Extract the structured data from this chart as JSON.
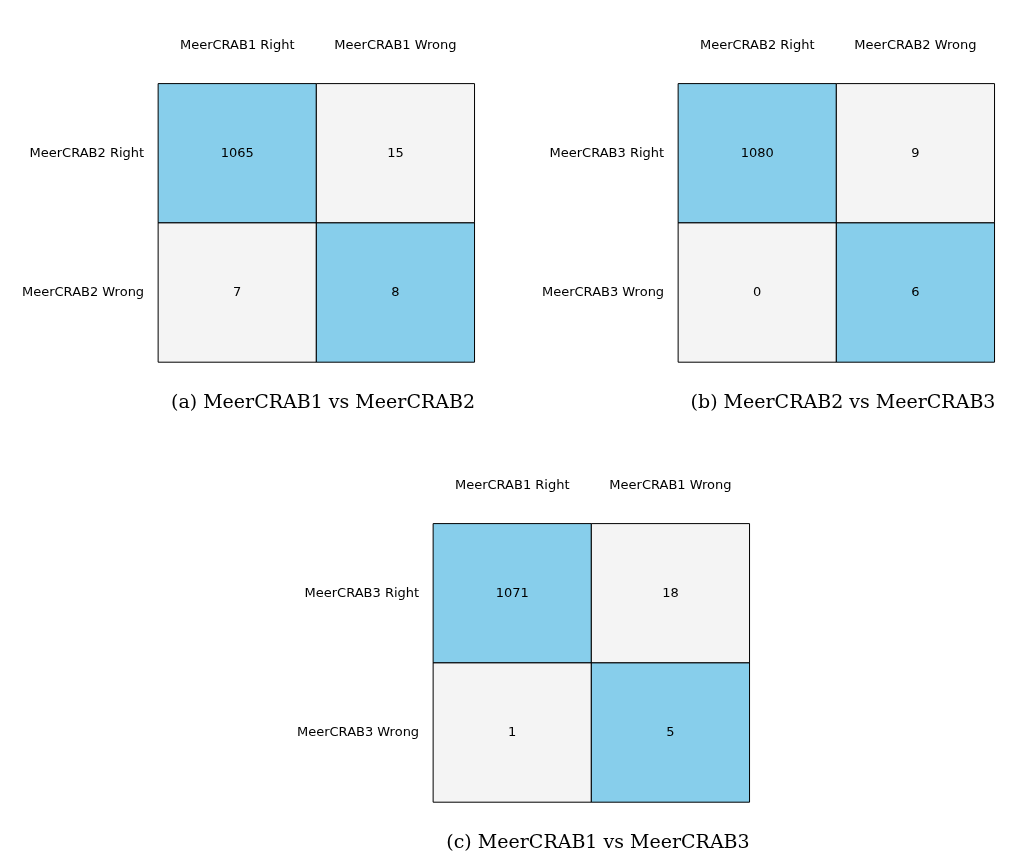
{
  "chart_data": [
    {
      "type": "heatmap",
      "title": "(a) MeerCRAB1 vs MeerCRAB2",
      "categories": [
        "MeerCRAB1 Right",
        "MeerCRAB1 Wrong"
      ],
      "y_categories": [
        "MeerCRAB2 Right",
        "MeerCRAB2 Wrong"
      ],
      "cells": [
        [
          1065,
          15
        ],
        [
          7,
          8
        ]
      ],
      "data_labels": true,
      "colors": [
        [
          "#87ceeb",
          "#f4f4f4"
        ],
        [
          "#f4f4f4",
          "#87ceeb"
        ]
      ]
    },
    {
      "type": "heatmap",
      "title": "(b) MeerCRAB2 vs MeerCRAB3",
      "categories": [
        "MeerCRAB2 Right",
        "MeerCRAB2 Wrong"
      ],
      "y_categories": [
        "MeerCRAB3 Right",
        "MeerCRAB3 Wrong"
      ],
      "cells": [
        [
          1080,
          9
        ],
        [
          0,
          6
        ]
      ],
      "data_labels": true,
      "colors": [
        [
          "#87ceeb",
          "#f4f4f4"
        ],
        [
          "#f4f4f4",
          "#87ceeb"
        ]
      ]
    },
    {
      "type": "heatmap",
      "title": "(c) MeerCRAB1 vs MeerCRAB3",
      "categories": [
        "MeerCRAB1 Right",
        "MeerCRAB1 Wrong"
      ],
      "y_categories": [
        "MeerCRAB3 Right",
        "MeerCRAB3 Wrong"
      ],
      "cells": [
        [
          1071,
          18
        ],
        [
          1,
          5
        ]
      ],
      "data_labels": true,
      "colors": [
        [
          "#87ceeb",
          "#f4f4f4"
        ],
        [
          "#f4f4f4",
          "#87ceeb"
        ]
      ]
    }
  ]
}
